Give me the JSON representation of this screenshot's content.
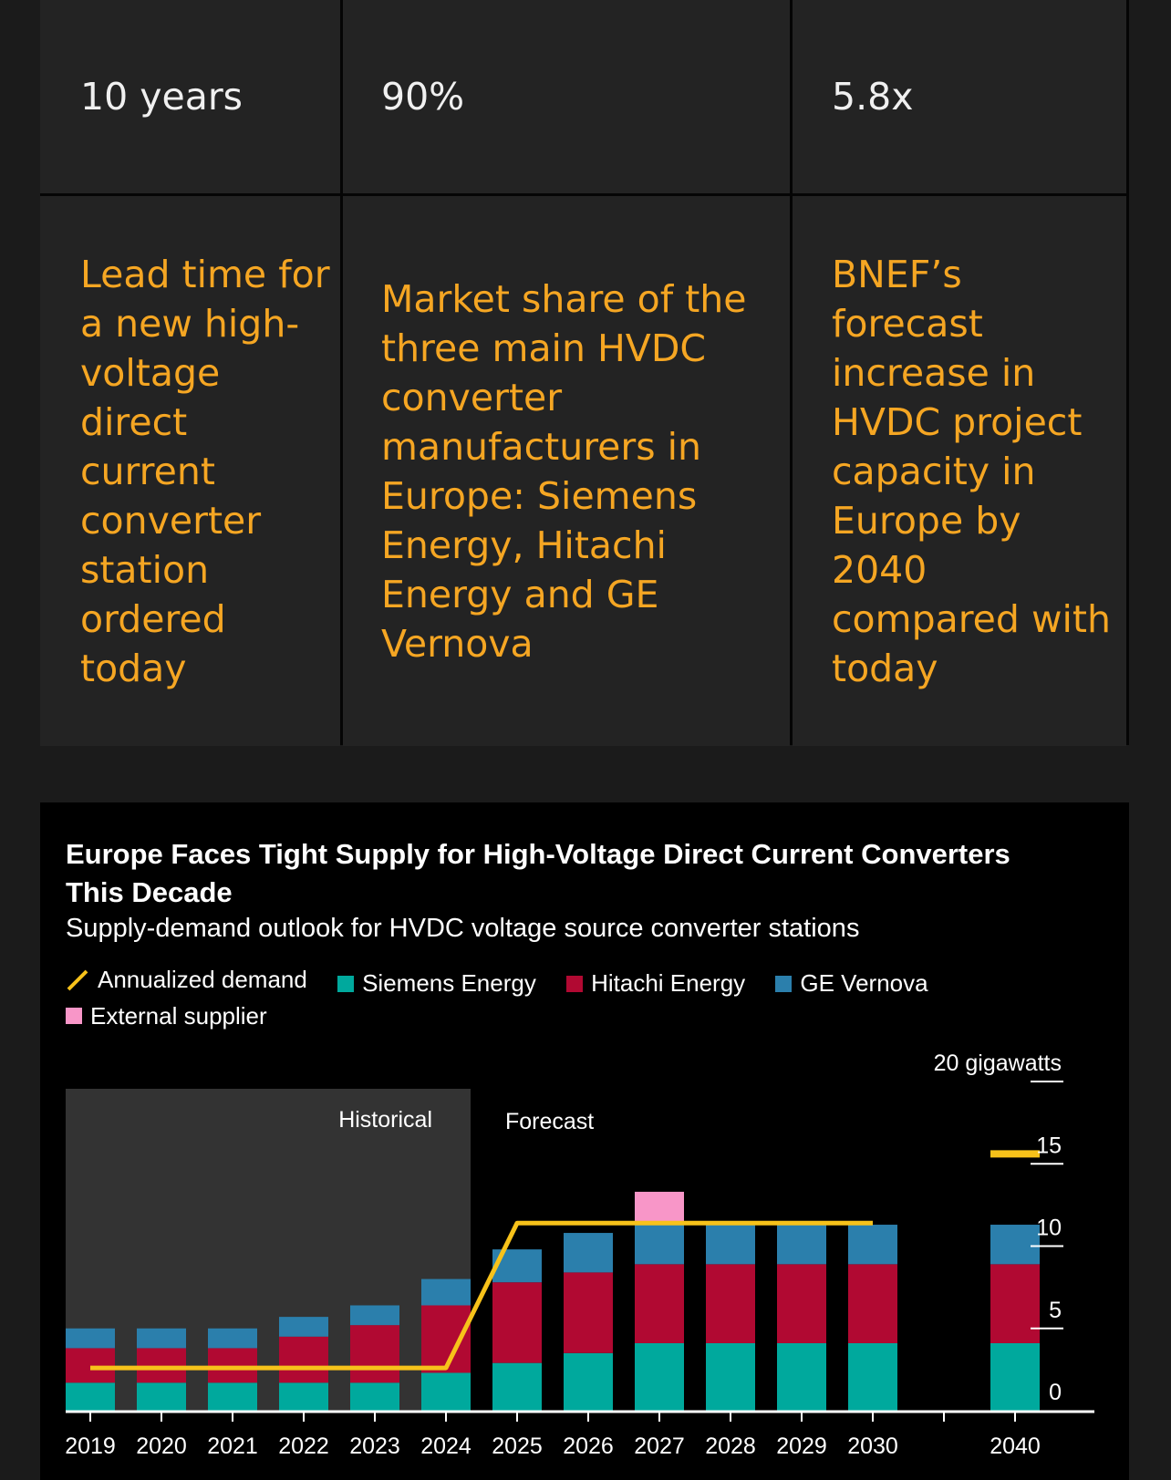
{
  "stats": [
    {
      "value": "10 years",
      "description": "Lead time for a new high-voltage direct current converter station ordered today"
    },
    {
      "value": "90%",
      "description": "Market share of the three main HVDC converter manufacturers in Europe: Siemens Energy, Hitachi Energy and GE Vernova"
    },
    {
      "value": "5.8x",
      "description": "BNEF’s forecast increase in HVDC project capacity in Europe by 2040 compared with today"
    }
  ],
  "colors": {
    "accent_text": "#f5a623",
    "demand_line": "#f7c21a",
    "siemens": "#00a99d",
    "hitachi": "#b10932",
    "ge": "#2b7fac",
    "external": "#f896c8",
    "historical_shade": "#333333"
  },
  "chart_data": {
    "type": "bar",
    "title": "Europe Faces Tight Supply for High-Voltage Direct Current Converters This Decade",
    "subtitle": "Supply-demand outlook for HVDC voltage source converter stations",
    "unit_label": "20 gigawatts",
    "y_ticks": [
      "0",
      "5",
      "10",
      "15"
    ],
    "ylim": [
      0,
      20
    ],
    "stacked": true,
    "categories": [
      "2019",
      "2020",
      "2021",
      "2022",
      "2023",
      "2024",
      "2025",
      "2026",
      "2027",
      "2028",
      "2029",
      "2030",
      "",
      "2040"
    ],
    "regions": [
      {
        "label": "Historical",
        "from": "2019",
        "to": "2024"
      },
      {
        "label": "Forecast",
        "from": "2025",
        "to": "2040"
      }
    ],
    "series": [
      {
        "name": "Siemens Energy",
        "values": [
          1.7,
          1.7,
          1.7,
          1.7,
          1.7,
          2.3,
          2.9,
          3.5,
          4.1,
          4.1,
          4.1,
          4.1,
          null,
          4.1
        ]
      },
      {
        "name": "Hitachi Energy",
        "values": [
          2.1,
          2.1,
          2.1,
          2.8,
          3.5,
          4.1,
          4.9,
          4.9,
          4.8,
          4.8,
          4.8,
          4.8,
          null,
          4.8
        ]
      },
      {
        "name": "GE Vernova",
        "values": [
          1.2,
          1.2,
          1.2,
          1.2,
          1.2,
          1.6,
          2.0,
          2.4,
          2.4,
          2.4,
          2.4,
          2.4,
          null,
          2.4
        ]
      },
      {
        "name": "External supplier",
        "values": [
          0,
          0,
          0,
          0,
          0,
          0,
          0,
          0,
          2.0,
          0,
          0,
          0,
          null,
          0
        ]
      }
    ],
    "demand": {
      "name": "Annualized demand",
      "points": [
        {
          "x": "2019",
          "y": 2.6
        },
        {
          "x": "2024",
          "y": 2.6
        },
        {
          "x": "2025",
          "y": 11.4
        },
        {
          "x": "2030",
          "y": 11.4
        },
        {
          "x": "2040",
          "y": 15.6
        }
      ]
    },
    "legend": [
      "Annualized demand",
      "Siemens Energy",
      "Hitachi Energy",
      "GE Vernova",
      "External supplier"
    ]
  }
}
